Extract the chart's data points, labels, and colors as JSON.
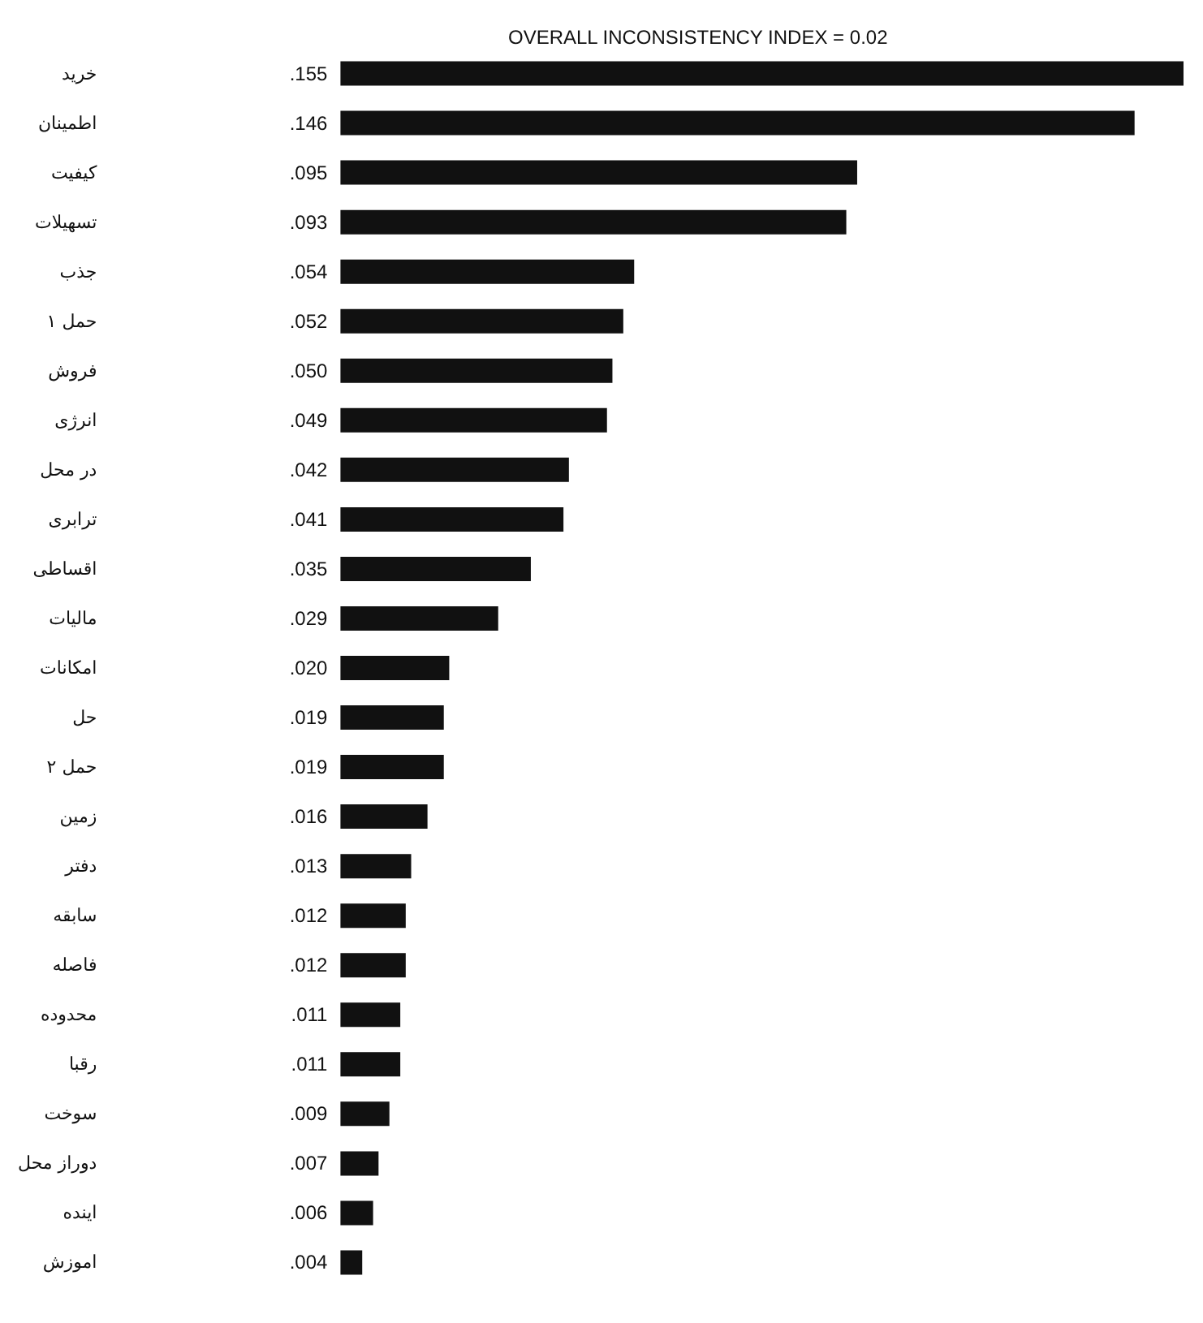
{
  "chart_data": {
    "type": "bar",
    "orientation": "horizontal",
    "title": "OVERALL INCONSISTENCY INDEX = 0.02",
    "categories": [
      "خرید",
      "اطمینان",
      "کیفیت",
      "تسهیلات",
      "جذب",
      "حمل ۱",
      "فروش",
      "انرژی",
      "در محل",
      "ترابری",
      "اقساطی",
      "مالیات",
      "امکانات",
      "حل",
      "حمل ۲",
      "زمین",
      "دفتر",
      "سابقه",
      "فاصله",
      "محدوده",
      "رقبا",
      "سوخت",
      "دوراز محل",
      "اینده",
      "اموزش"
    ],
    "values": [
      0.155,
      0.146,
      0.095,
      0.093,
      0.054,
      0.052,
      0.05,
      0.049,
      0.042,
      0.041,
      0.035,
      0.029,
      0.02,
      0.019,
      0.019,
      0.016,
      0.013,
      0.012,
      0.012,
      0.011,
      0.011,
      0.009,
      0.007,
      0.006,
      0.004
    ],
    "value_labels": [
      ".155",
      ".146",
      ".095",
      ".093",
      ".054",
      ".052",
      ".050",
      ".049",
      ".042",
      ".041",
      ".035",
      ".029",
      ".020",
      ".019",
      ".019",
      ".016",
      ".013",
      ".012",
      ".012",
      ".011",
      ".011",
      ".009",
      ".007",
      ".006",
      ".004"
    ],
    "color": "#111111"
  }
}
